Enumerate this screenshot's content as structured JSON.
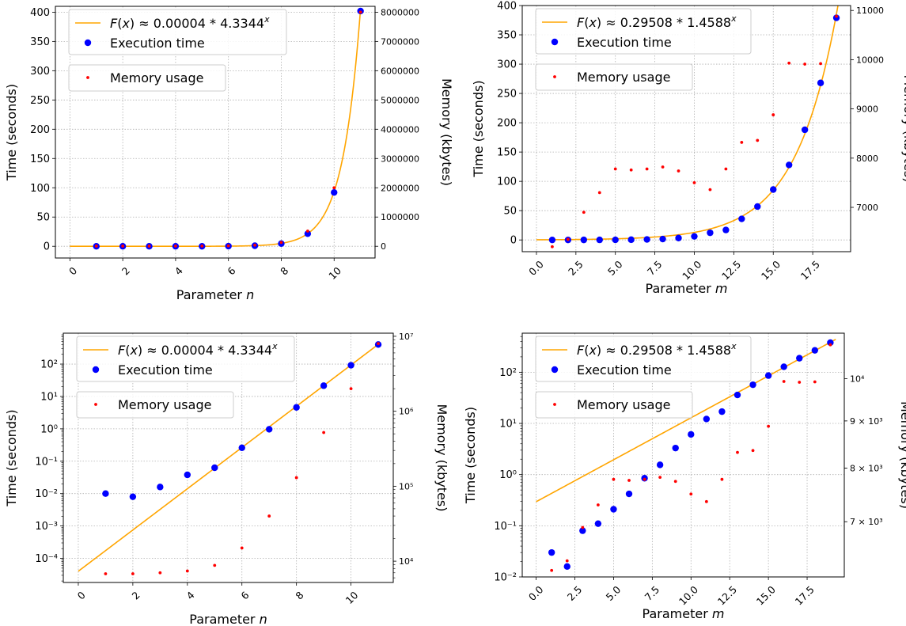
{
  "chart_data": [
    {
      "type": "scatter",
      "xlabel": "Parameter n",
      "xvar": "n",
      "ylabel": "Time (seconds)",
      "y2label": "Memory (kbytes)",
      "yscale": "linear",
      "xlim": [
        -0.55,
        11.55
      ],
      "ylim": [
        -20,
        410
      ],
      "y2lim": [
        -400000,
        8200000
      ],
      "xticks": [
        0,
        2,
        4,
        6,
        8,
        10
      ],
      "xtick_labels": [
        "0",
        "2",
        "4",
        "6",
        "8",
        "10"
      ],
      "yticks": [
        0,
        50,
        100,
        150,
        200,
        250,
        300,
        350,
        400
      ],
      "ytick_labels": [
        "0",
        "50",
        "100",
        "150",
        "200",
        "250",
        "300",
        "350",
        "400"
      ],
      "y2ticks": [
        0,
        1000000,
        2000000,
        3000000,
        4000000,
        5000000,
        6000000,
        7000000,
        8000000
      ],
      "y2tick_labels": [
        "0",
        "1000000",
        "2000000",
        "3000000",
        "4000000",
        "5000000",
        "6000000",
        "7000000",
        "8000000"
      ],
      "grid": true,
      "legend_placement": "top-left",
      "fit": {
        "a": 4e-05,
        "b": 4.3344,
        "label": "F(x) ≈ 0.00004 * 4.3344^x",
        "color": "#FFA500"
      },
      "series": [
        {
          "name": "Execution time",
          "axis": "left",
          "color": "#0000FF",
          "x": [
            1,
            2,
            3,
            4,
            5,
            6,
            7,
            8,
            9,
            10,
            11
          ],
          "y": [
            0.01,
            0.008,
            0.016,
            0.038,
            0.063,
            0.26,
            0.97,
            4.6,
            21.5,
            92,
            402
          ]
        },
        {
          "name": "Memory usage",
          "axis": "right",
          "color": "#FF0000",
          "x": [
            1,
            2,
            3,
            4,
            5,
            6,
            7,
            8,
            9,
            10,
            11
          ],
          "y": [
            6800,
            6800,
            7000,
            7400,
            8800,
            15000,
            40000,
            130000,
            520000,
            2000000,
            8000000
          ]
        }
      ]
    },
    {
      "type": "scatter",
      "xlabel": "Parameter m",
      "xvar": "m",
      "ylabel": "Time (seconds)",
      "y2label": "Memory (kbytes)",
      "yscale": "linear",
      "xlim": [
        -0.9,
        19.9
      ],
      "ylim": [
        -20,
        400
      ],
      "y2lim": [
        6100,
        11100
      ],
      "xticks": [
        0,
        2.5,
        5,
        7.5,
        10,
        12.5,
        15,
        17.5
      ],
      "xtick_labels": [
        "0.0",
        "2.5",
        "5.0",
        "7.5",
        "10.0",
        "12.5",
        "15.0",
        "17.5"
      ],
      "yticks": [
        0,
        50,
        100,
        150,
        200,
        250,
        300,
        350,
        400
      ],
      "ytick_labels": [
        "0",
        "50",
        "100",
        "150",
        "200",
        "250",
        "300",
        "350",
        "400"
      ],
      "y2ticks": [
        7000,
        8000,
        9000,
        10000,
        11000
      ],
      "y2tick_labels": [
        "7000",
        "8000",
        "9000",
        "10000",
        "11000"
      ],
      "grid": true,
      "legend_placement": "top-left",
      "fit": {
        "a": 0.29508,
        "b": 1.4588,
        "label": "F(x) ≈ 0.29508 * 1.4588^x",
        "color": "#FFA500"
      },
      "series": [
        {
          "name": "Execution time",
          "axis": "left",
          "color": "#0000FF",
          "x": [
            1,
            2,
            3,
            4,
            5,
            6,
            7,
            8,
            9,
            10,
            11,
            12,
            13,
            14,
            15,
            16,
            17,
            18,
            19
          ],
          "y": [
            0.03,
            0.016,
            0.08,
            0.11,
            0.21,
            0.42,
            0.85,
            1.55,
            3.3,
            6.1,
            12.2,
            17,
            36,
            57,
            86,
            128,
            188,
            268,
            379
          ]
        },
        {
          "name": "Memory usage",
          "axis": "right",
          "color": "#FF0000",
          "x": [
            1,
            2,
            3,
            4,
            5,
            6,
            7,
            8,
            9,
            10,
            11,
            12,
            13,
            14,
            15,
            16,
            17,
            18,
            19
          ],
          "y": [
            6200,
            6350,
            6900,
            7300,
            7780,
            7760,
            7780,
            7820,
            7740,
            7500,
            7360,
            7780,
            8320,
            8360,
            8880,
            9930,
            9910,
            9920,
            10880
          ]
        }
      ]
    },
    {
      "type": "scatter",
      "xlabel": "Parameter n",
      "xvar": "n",
      "ylabel": "Time (seconds)",
      "y2label": "Memory (kbytes)",
      "yscale": "log",
      "y2scale": "log",
      "xlim": [
        -0.55,
        11.55
      ],
      "ylim": [
        1.8e-05,
        900
      ],
      "y2lim": [
        5200,
        11000000
      ],
      "xticks": [
        0,
        2,
        4,
        6,
        8,
        10
      ],
      "xtick_labels": [
        "0",
        "2",
        "4",
        "6",
        "8",
        "10"
      ],
      "yticks": [
        0.0001,
        0.001,
        0.01,
        0.1,
        1,
        10,
        100
      ],
      "ytick_labels": [
        "10⁻⁴",
        "10⁻³",
        "10⁻²",
        "10⁻¹",
        "10⁰",
        "10¹",
        "10²"
      ],
      "y2ticks": [
        10000,
        100000,
        1000000,
        10000000
      ],
      "y2tick_labels": [
        "10⁴",
        "10⁵",
        "10⁶",
        "10⁷"
      ],
      "grid": true,
      "legend_placement": "top-left",
      "fit": {
        "a": 4e-05,
        "b": 4.3344,
        "label": "F(x) ≈ 0.00004 * 4.3344^x",
        "color": "#FFA500"
      },
      "series": [
        {
          "name": "Execution time",
          "axis": "left",
          "color": "#0000FF",
          "x": [
            1,
            2,
            3,
            4,
            5,
            6,
            7,
            8,
            9,
            10,
            11
          ],
          "y": [
            0.01,
            0.008,
            0.016,
            0.038,
            0.063,
            0.26,
            0.97,
            4.6,
            21.5,
            92,
            402
          ]
        },
        {
          "name": "Memory usage",
          "axis": "right",
          "color": "#FF0000",
          "x": [
            1,
            2,
            3,
            4,
            5,
            6,
            7,
            8,
            9,
            10,
            11
          ],
          "y": [
            6800,
            6800,
            7000,
            7400,
            8800,
            15000,
            40000,
            130000,
            520000,
            2000000,
            8000000
          ]
        }
      ]
    },
    {
      "type": "scatter",
      "xlabel": "Parameter m",
      "xvar": "m",
      "ylabel": "Time (seconds)",
      "y2label": "Memory (kbytes)",
      "yscale": "log",
      "y2scale": "log",
      "xlim": [
        -0.9,
        19.9
      ],
      "ylim": [
        0.01,
        580
      ],
      "y2lim": [
        6100,
        11200
      ],
      "xticks": [
        0,
        2.5,
        5,
        7.5,
        10,
        12.5,
        15,
        17.5
      ],
      "xtick_labels": [
        "0.0",
        "2.5",
        "5.0",
        "7.5",
        "10.0",
        "12.5",
        "15.0",
        "17.5"
      ],
      "yticks": [
        0.01,
        0.1,
        1,
        10,
        100
      ],
      "ytick_labels": [
        "10⁻²",
        "10⁻¹",
        "10⁰",
        "10¹",
        "10²"
      ],
      "y2ticks": [
        7000,
        8000,
        9000,
        10000
      ],
      "y2tick_labels": [
        "7 × 10³",
        "8 × 10³",
        "9 × 10³",
        "10⁴"
      ],
      "grid": true,
      "legend_placement": "top-left",
      "fit": {
        "a": 0.29508,
        "b": 1.4588,
        "label": "F(x) ≈ 0.29508 * 1.4588^x",
        "color": "#FFA500"
      },
      "series": [
        {
          "name": "Execution time",
          "axis": "left",
          "color": "#0000FF",
          "x": [
            1,
            2,
            3,
            4,
            5,
            6,
            7,
            8,
            9,
            10,
            11,
            12,
            13,
            14,
            15,
            16,
            17,
            18,
            19
          ],
          "y": [
            0.03,
            0.016,
            0.08,
            0.11,
            0.21,
            0.42,
            0.85,
            1.55,
            3.3,
            6.1,
            12.2,
            17,
            36,
            57,
            86,
            128,
            188,
            268,
            379
          ]
        },
        {
          "name": "Memory usage",
          "axis": "right",
          "color": "#FF0000",
          "x": [
            1,
            2,
            3,
            4,
            5,
            6,
            7,
            8,
            9,
            10,
            11,
            12,
            13,
            14,
            15,
            16,
            17,
            18,
            19
          ],
          "y": [
            6200,
            6350,
            6900,
            7300,
            7780,
            7760,
            7780,
            7820,
            7740,
            7500,
            7360,
            7780,
            8320,
            8360,
            8880,
            9930,
            9910,
            9920,
            10880
          ]
        }
      ]
    }
  ]
}
